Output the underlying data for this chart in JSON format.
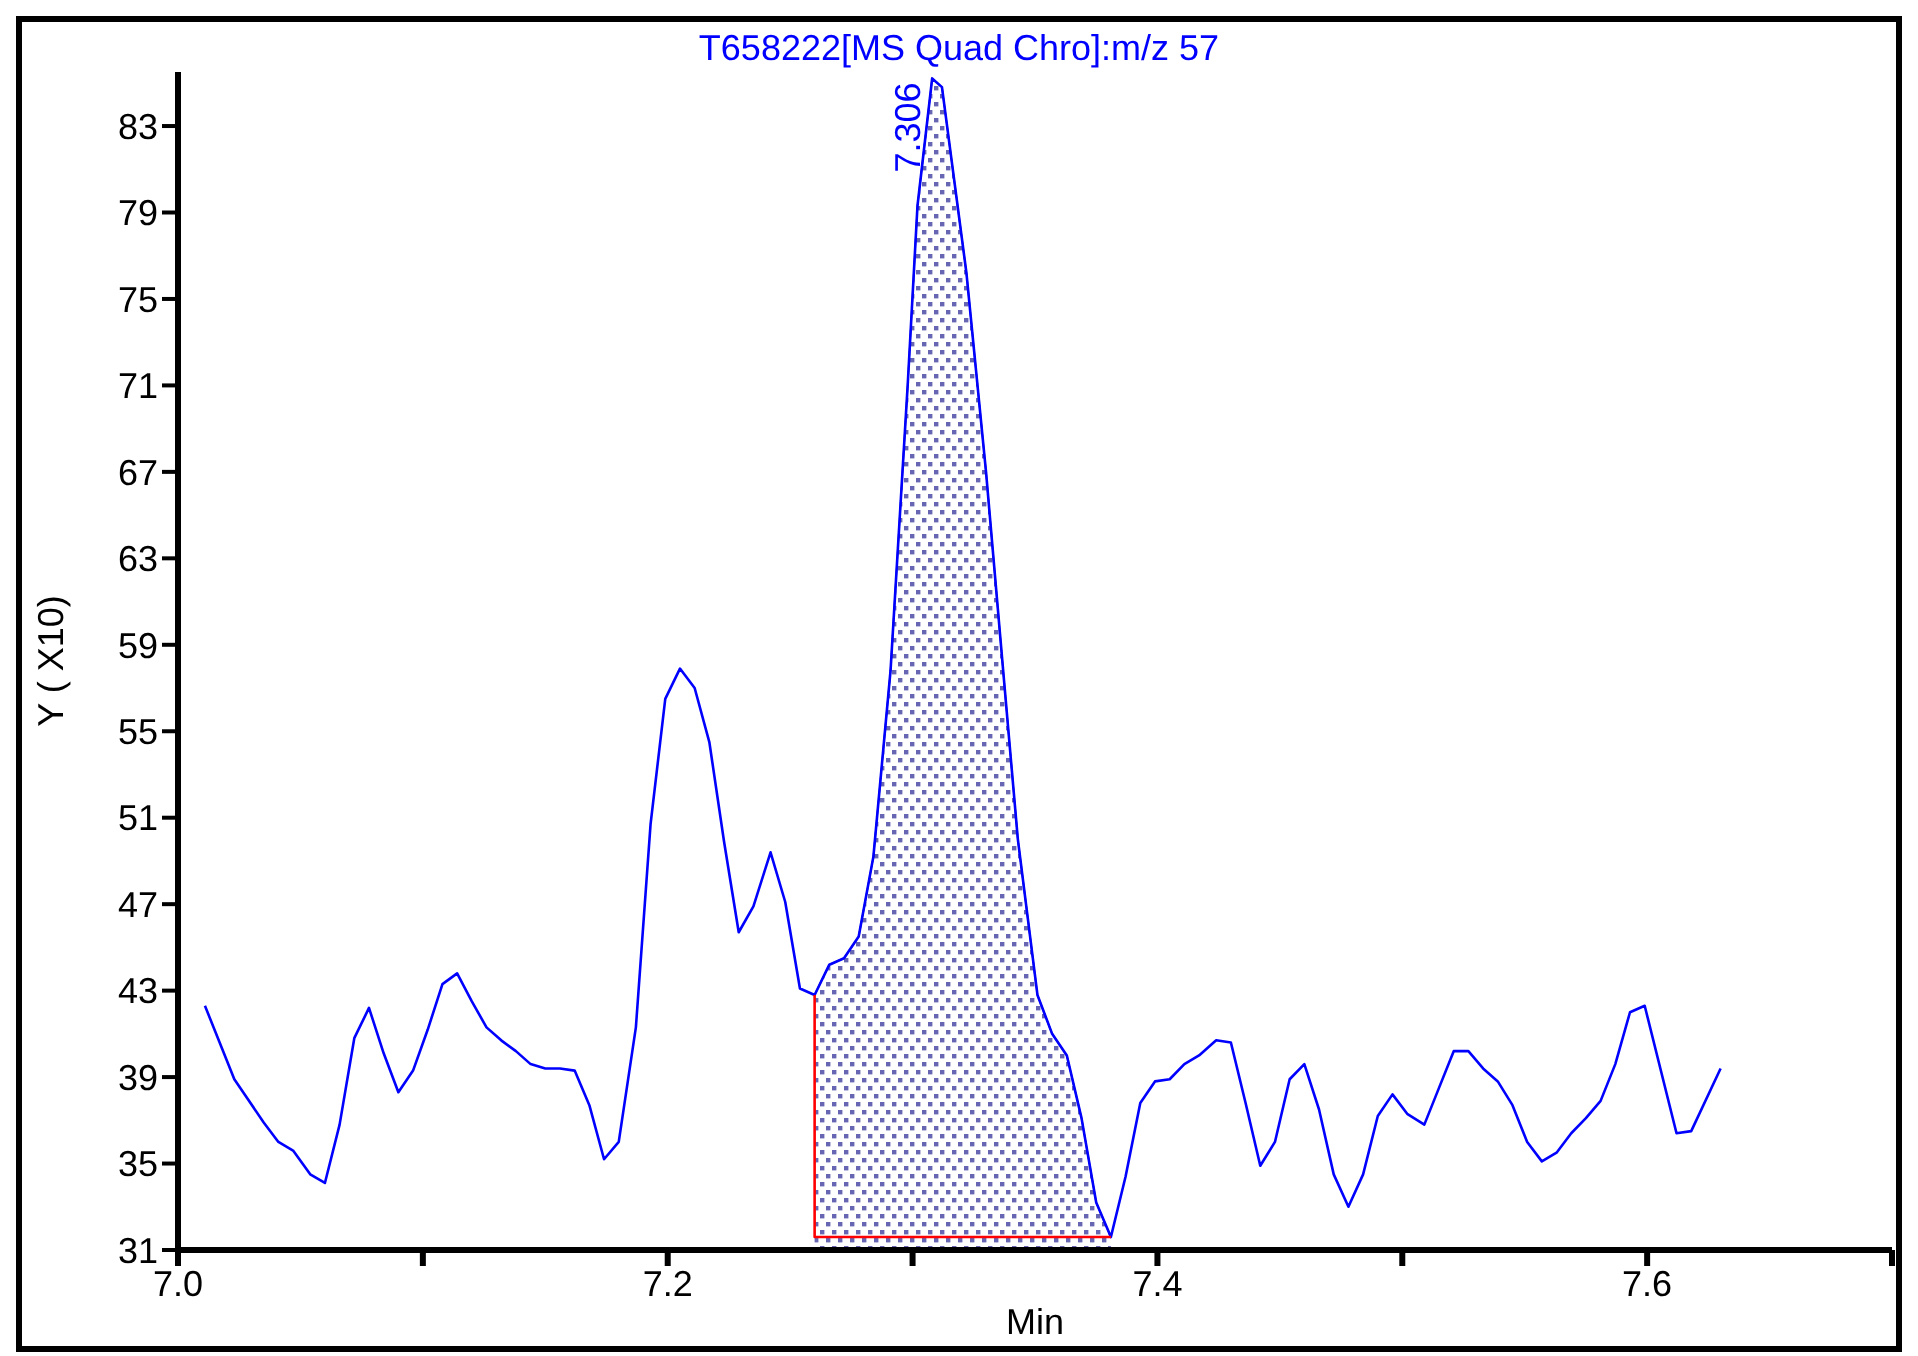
{
  "chart_data": {
    "type": "line",
    "title": "T658222[MS Quad Chro]:m/z 57",
    "xlabel": "Min",
    "ylabel": "Y ( X10)",
    "xlim": [
      7.0,
      7.7
    ],
    "xticks": [
      {
        "value": 7.0,
        "label": "7.0"
      },
      {
        "value": 7.1,
        "label": null
      },
      7.2,
      {
        "value": 7.3,
        "label": null
      },
      7.4,
      {
        "value": 7.5,
        "label": null
      },
      7.6,
      {
        "value": 7.7,
        "label": null
      }
    ],
    "ylim": [
      31,
      85.5
    ],
    "yticks": [
      31,
      35,
      39,
      43,
      47,
      51,
      55,
      59,
      63,
      67,
      71,
      75,
      79,
      83
    ],
    "grid": false,
    "legend": false,
    "marker": "none",
    "line_style": "solid",
    "annotations": [
      {
        "text": "7.306",
        "x": 7.308,
        "y": 85.2
      }
    ],
    "series": [
      {
        "color": "#0000ff",
        "x": [
          7.011,
          7.023,
          7.035,
          7.041,
          7.047,
          7.054,
          7.06,
          7.066,
          7.072,
          7.078,
          7.084,
          7.09,
          7.096,
          7.102,
          7.108,
          7.114,
          7.12,
          7.126,
          7.132,
          7.138,
          7.144,
          7.15,
          7.156,
          7.162,
          7.168,
          7.174,
          7.18,
          7.187,
          7.193,
          7.199,
          7.205,
          7.211,
          7.217,
          7.223,
          7.229,
          7.235,
          7.242,
          7.248,
          7.254,
          7.26,
          7.266,
          7.272,
          7.278,
          7.284,
          7.291,
          7.298,
          7.302,
          7.308,
          7.312,
          7.322,
          7.33,
          7.337,
          7.343,
          7.351,
          7.357,
          7.363,
          7.369,
          7.375,
          7.381,
          7.387,
          7.393,
          7.399,
          7.405,
          7.411,
          7.417,
          7.424,
          7.43,
          7.436,
          7.442,
          7.448,
          7.454,
          7.46,
          7.466,
          7.472,
          7.478,
          7.484,
          7.49,
          7.496,
          7.502,
          7.509,
          7.515,
          7.521,
          7.527,
          7.533,
          7.539,
          7.545,
          7.551,
          7.557,
          7.563,
          7.569,
          7.575,
          7.581,
          7.587,
          7.593,
          7.599,
          7.612,
          7.618,
          7.63
        ],
        "values": [
          42.3,
          38.9,
          36.9,
          36.0,
          35.6,
          34.5,
          34.1,
          36.8,
          40.8,
          42.2,
          40.1,
          38.3,
          39.3,
          41.2,
          43.3,
          43.8,
          42.5,
          41.3,
          40.7,
          40.2,
          39.6,
          39.4,
          39.4,
          39.3,
          37.7,
          35.2,
          36.0,
          41.3,
          50.7,
          56.5,
          57.9,
          57.0,
          54.5,
          49.9,
          45.7,
          46.9,
          49.4,
          47.1,
          43.1,
          42.8,
          44.2,
          44.5,
          45.5,
          49.2,
          57.8,
          71.0,
          79.3,
          85.2,
          84.8,
          76.2,
          67.0,
          57.8,
          50.0,
          42.8,
          41.0,
          40.0,
          37.1,
          33.2,
          31.6,
          34.4,
          37.8,
          38.8,
          38.9,
          39.6,
          40.0,
          40.7,
          40.6,
          37.8,
          34.9,
          36.0,
          38.9,
          39.6,
          37.5,
          34.5,
          33.0,
          34.5,
          37.2,
          38.2,
          37.3,
          36.8,
          38.5,
          40.2,
          40.2,
          39.4,
          38.8,
          37.7,
          36.0,
          35.1,
          35.5,
          36.4,
          37.1,
          37.9,
          39.6,
          42.0,
          42.3,
          36.4,
          36.5,
          39.4
        ]
      },
      {
        "type": "area",
        "color": "#000080",
        "x": [
          7.26,
          7.266,
          7.272,
          7.278,
          7.284,
          7.291,
          7.298,
          7.302,
          7.308,
          7.312,
          7.322,
          7.33,
          7.337,
          7.343,
          7.351,
          7.357,
          7.363,
          7.369,
          7.375,
          7.381
        ],
        "values": [
          42.8,
          44.2,
          44.5,
          45.5,
          49.2,
          57.8,
          71.0,
          79.3,
          85.2,
          84.8,
          76.2,
          67.0,
          57.8,
          50.0,
          42.8,
          41.0,
          40.0,
          37.1,
          33.2,
          31.6
        ]
      },
      {
        "type": "line",
        "color": "#ff0000",
        "x": [
          7.26,
          7.26,
          7.381
        ],
        "values": [
          42.8,
          31.6,
          31.6
        ]
      }
    ]
  }
}
